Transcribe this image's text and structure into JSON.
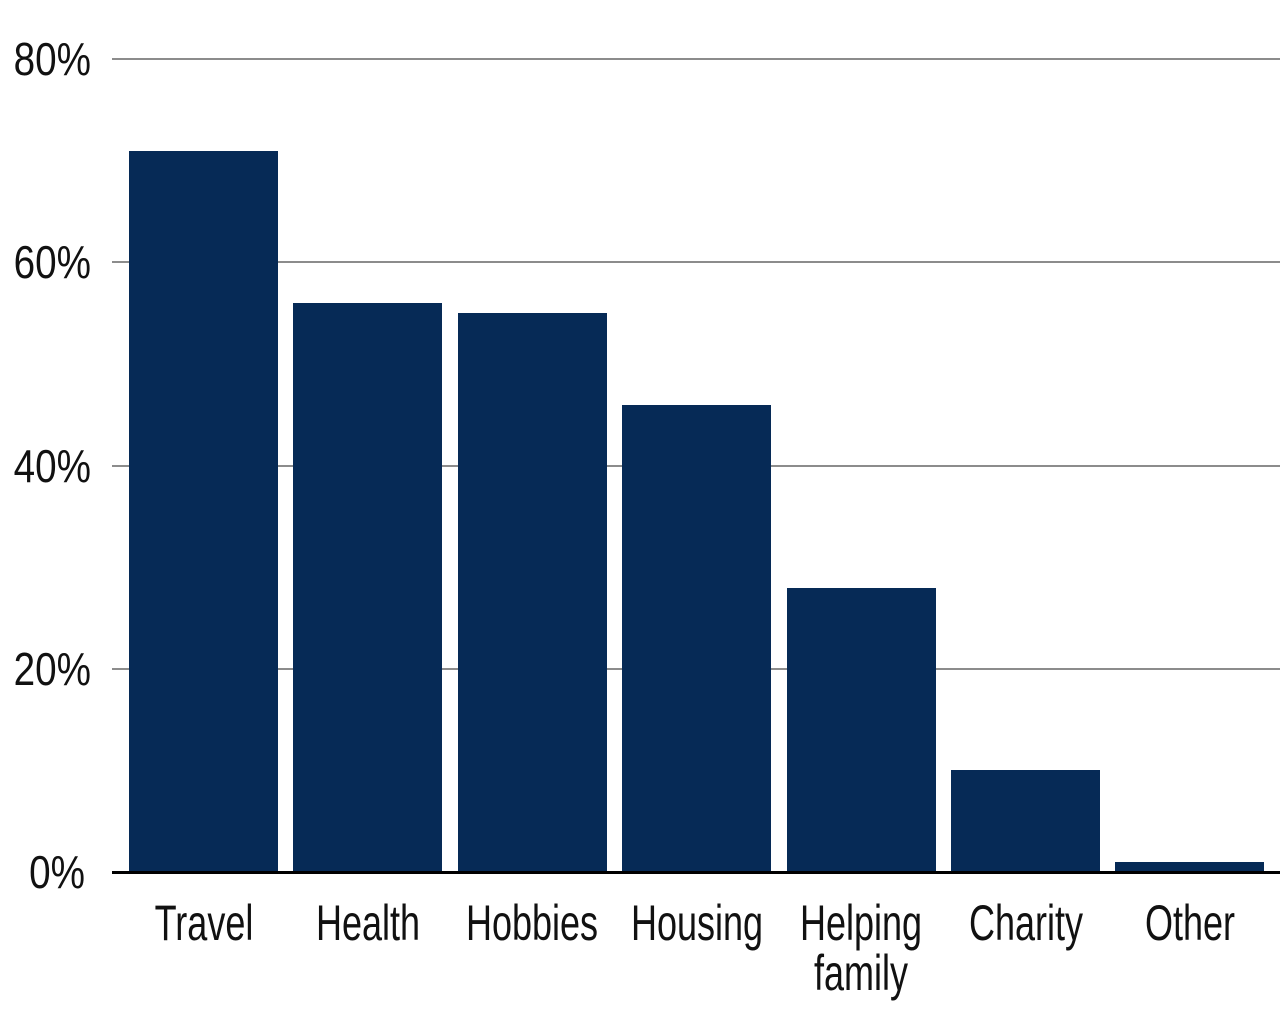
{
  "chart_data": {
    "type": "bar",
    "title": "",
    "xlabel": "",
    "ylabel": "",
    "categories": [
      "Travel",
      "Health",
      "Hobbies",
      "Housing",
      "Helping family",
      "Charity",
      "Other"
    ],
    "x_labels_display": [
      "Travel",
      "Health",
      "Hobbies",
      "Housing",
      "Helping\nfamily",
      "Charity",
      "Other"
    ],
    "values": [
      71,
      56,
      55,
      46,
      28,
      10,
      1
    ],
    "unit": "%",
    "ylim": [
      0,
      80
    ],
    "y_ticks": [
      0,
      20,
      40,
      60,
      80
    ],
    "y_tick_labels": [
      "0%",
      "20%",
      "40%",
      "60%",
      "80%"
    ],
    "grid": true,
    "legend": "none",
    "colors": {
      "bar": "#062a56",
      "gridline": "#8c8c8c",
      "axis": "#000000",
      "background": "#ffffff",
      "text": "#111111"
    }
  }
}
